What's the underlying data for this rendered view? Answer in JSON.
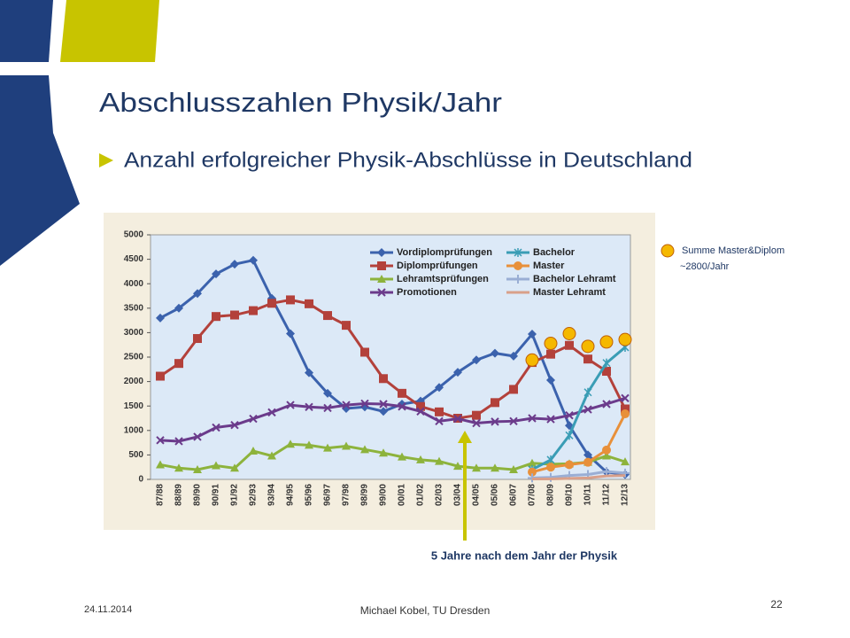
{
  "title": "Abschlusszahlen Physik/Jahr",
  "subtitle": "Anzahl erfolgreicher Physik-Abschlüsse in Deutschland",
  "footer": {
    "date": "24.11.2014",
    "author": "Michael Kobel, TU Dresden",
    "page": "22"
  },
  "chart_data": {
    "type": "line",
    "categories": [
      "87/88",
      "88/89",
      "89/90",
      "90/91",
      "91/92",
      "92/93",
      "93/94",
      "94/95",
      "95/96",
      "96/97",
      "97/98",
      "98/99",
      "99/00",
      "00/01",
      "01/02",
      "02/03",
      "03/04",
      "04/05",
      "05/06",
      "06/07",
      "07/08",
      "08/09",
      "09/10",
      "10/11",
      "11/12",
      "12/13"
    ],
    "ylim": [
      0,
      5000
    ],
    "yticks": [
      0,
      500,
      1000,
      1500,
      2000,
      2500,
      3000,
      3500,
      4000,
      4500,
      5000
    ],
    "series": [
      {
        "name": "Vordiplomprüfungen",
        "color": "#3b62ad",
        "marker": "diamond",
        "values": [
          3300,
          3500,
          3800,
          4200,
          4400,
          4480,
          3700,
          2980,
          2180,
          1760,
          1450,
          1480,
          1390,
          1540,
          1600,
          1880,
          2190,
          2440,
          2580,
          2520,
          2970,
          2030,
          1100,
          500,
          150,
          100
        ]
      },
      {
        "name": "Diplomprüfungen",
        "color": "#b3413b",
        "marker": "square",
        "values": [
          2110,
          2370,
          2880,
          3330,
          3360,
          3450,
          3600,
          3670,
          3590,
          3350,
          3150,
          2600,
          2060,
          1760,
          1490,
          1380,
          1250,
          1310,
          1570,
          1840,
          2390,
          2560,
          2740,
          2460,
          2210,
          1440
        ]
      },
      {
        "name": "Lehramtsprüfungen",
        "color": "#8db33c",
        "marker": "triangle",
        "values": [
          300,
          230,
          200,
          280,
          230,
          580,
          480,
          720,
          700,
          640,
          680,
          610,
          540,
          460,
          400,
          370,
          270,
          230,
          230,
          200,
          330,
          310,
          320,
          350,
          480,
          360
        ]
      },
      {
        "name": "Promotionen",
        "color": "#6b3b8b",
        "marker": "x",
        "values": [
          800,
          780,
          870,
          1060,
          1110,
          1240,
          1370,
          1520,
          1480,
          1460,
          1520,
          1550,
          1540,
          1490,
          1390,
          1190,
          1240,
          1150,
          1180,
          1190,
          1250,
          1230,
          1310,
          1430,
          1540,
          1660
        ]
      },
      {
        "name": "Bachelor",
        "color": "#3a9db5",
        "marker": "star",
        "values": [
          null,
          null,
          null,
          null,
          null,
          null,
          null,
          null,
          null,
          null,
          null,
          null,
          null,
          null,
          null,
          null,
          null,
          null,
          null,
          null,
          200,
          400,
          900,
          1780,
          2380,
          2700
        ]
      },
      {
        "name": "Master",
        "color": "#e8903a",
        "marker": "circle",
        "values": [
          null,
          null,
          null,
          null,
          null,
          null,
          null,
          null,
          null,
          null,
          null,
          null,
          null,
          null,
          null,
          null,
          null,
          null,
          null,
          null,
          150,
          250,
          300,
          350,
          600,
          1340
        ]
      },
      {
        "name": "Bachelor Lehramt",
        "color": "#9aaed4",
        "marker": "plus",
        "values": [
          null,
          null,
          null,
          null,
          null,
          null,
          null,
          null,
          null,
          null,
          null,
          null,
          null,
          null,
          null,
          null,
          null,
          null,
          null,
          null,
          30,
          40,
          80,
          100,
          160,
          130
        ]
      },
      {
        "name": "Master Lehramt",
        "color": "#d9a08a",
        "marker": "none",
        "values": [
          null,
          null,
          null,
          null,
          null,
          null,
          null,
          null,
          null,
          null,
          null,
          null,
          null,
          null,
          null,
          null,
          null,
          null,
          null,
          null,
          10,
          10,
          20,
          30,
          70,
          80
        ]
      }
    ],
    "sum_markers": {
      "label": [
        "Summe Master&Diplom",
        "~2800/Jahr"
      ],
      "color": "#f5b800",
      "values": [
        null,
        null,
        null,
        null,
        null,
        null,
        null,
        null,
        null,
        null,
        null,
        null,
        null,
        null,
        null,
        null,
        null,
        null,
        null,
        null,
        2440,
        2780,
        2980,
        2720,
        2810,
        2860
      ]
    },
    "annotation": {
      "text": "5 Jahre nach dem Jahr der Physik",
      "category_index": 16
    }
  }
}
